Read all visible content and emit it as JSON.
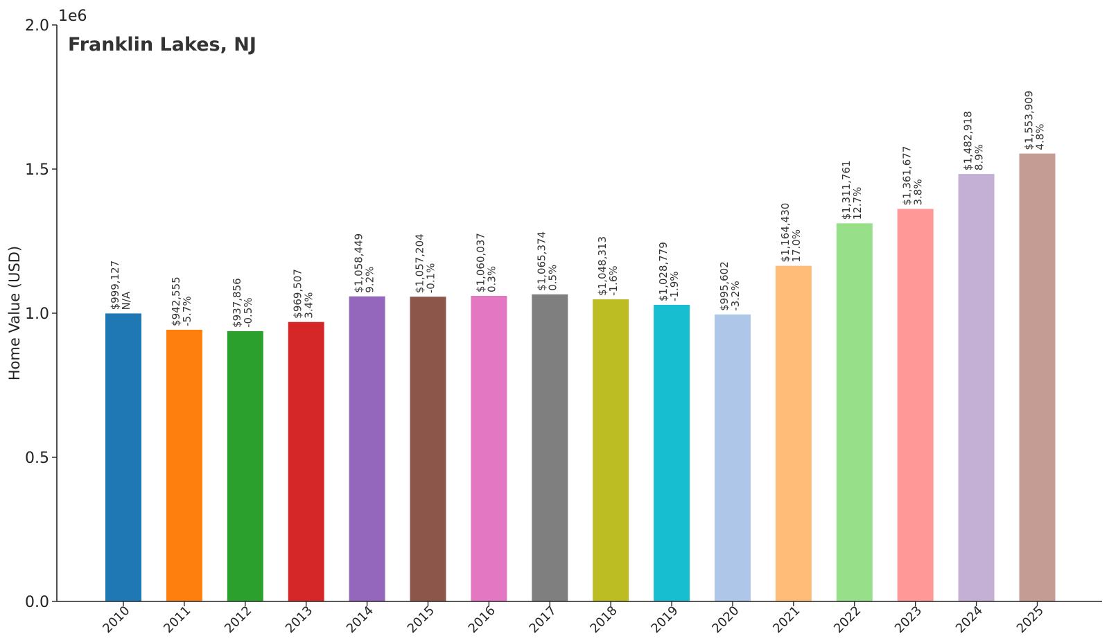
{
  "chart_data": {
    "type": "bar",
    "title": "Franklin Lakes, NJ",
    "xlabel": "",
    "ylabel": "Home Value (USD)",
    "y_offset_text": "1e6",
    "ylim": [
      0,
      2000000
    ],
    "yticks": [
      {
        "value": 0,
        "label": "0.0"
      },
      {
        "value": 500000,
        "label": "0.5"
      },
      {
        "value": 1000000,
        "label": "1.0"
      },
      {
        "value": 1500000,
        "label": "1.5"
      },
      {
        "value": 2000000,
        "label": "2.0"
      }
    ],
    "grid": false,
    "categories": [
      "2010",
      "2011",
      "2012",
      "2013",
      "2014",
      "2015",
      "2016",
      "2017",
      "2018",
      "2019",
      "2020",
      "2021",
      "2022",
      "2023",
      "2024",
      "2025"
    ],
    "values": [
      999127,
      942555,
      937856,
      969507,
      1058449,
      1057204,
      1060037,
      1065374,
      1048313,
      1028779,
      995602,
      1164430,
      1311761,
      1361677,
      1482918,
      1553909
    ],
    "value_labels": [
      "$999,127",
      "$942,555",
      "$937,856",
      "$969,507",
      "$1,058,449",
      "$1,057,204",
      "$1,060,037",
      "$1,065,374",
      "$1,048,313",
      "$1,028,779",
      "$995,602",
      "$1,164,430",
      "$1,311,761",
      "$1,361,677",
      "$1,482,918",
      "$1,553,909"
    ],
    "change_labels": [
      "N/A",
      "-5.7%",
      "-0.5%",
      "3.4%",
      "9.2%",
      "-0.1%",
      "0.3%",
      "0.5%",
      "-1.6%",
      "-1.9%",
      "-3.2%",
      "17.0%",
      "12.7%",
      "3.8%",
      "8.9%",
      "4.8%"
    ],
    "colors": [
      "#1f77b4",
      "#ff7f0e",
      "#2ca02c",
      "#d62728",
      "#9467bd",
      "#8c564b",
      "#e377c2",
      "#7f7f7f",
      "#bcbd22",
      "#17becf",
      "#aec7e8",
      "#ffbb78",
      "#98df8a",
      "#ff9896",
      "#c5b0d5",
      "#c49c94"
    ]
  }
}
